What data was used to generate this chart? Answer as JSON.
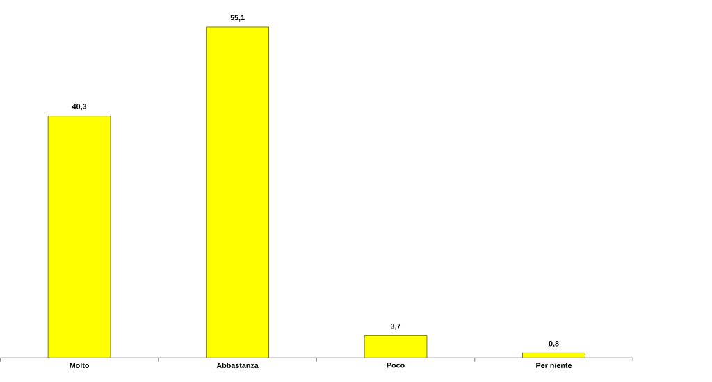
{
  "chart_data": {
    "type": "bar",
    "categories": [
      "Molto",
      "Abbastanza",
      "Poco",
      "Per niente"
    ],
    "values": [
      40.3,
      55.1,
      3.7,
      0.8
    ],
    "value_labels": [
      "40,3",
      "55,1",
      "3,7",
      "0,8"
    ],
    "color": "#ffff00"
  }
}
